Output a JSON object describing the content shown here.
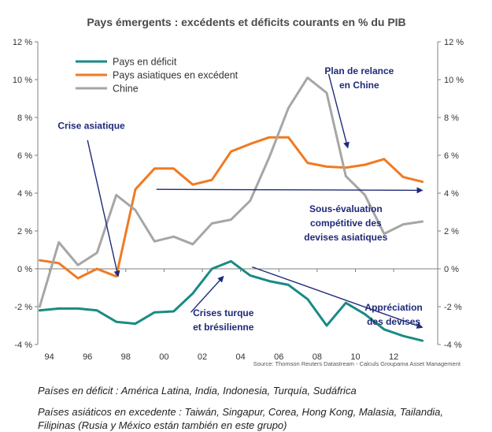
{
  "chart_data": {
    "type": "line",
    "title": "Pays émergents : excédents et déficits courants en % du PIB",
    "x": [
      1993.5,
      1994,
      1995,
      1996,
      1997,
      1998,
      1999,
      2000,
      2001,
      2002,
      2003,
      2004,
      2005,
      2006,
      2007,
      2008,
      2009,
      2010,
      2011,
      2012,
      2013
    ],
    "xlim": [
      1993.4,
      2014.3
    ],
    "ylim": [
      -4,
      12
    ],
    "x_ticks": [
      {
        "value": 1994,
        "label": "94"
      },
      {
        "value": 1996,
        "label": "96"
      },
      {
        "value": 1998,
        "label": "98"
      },
      {
        "value": 2000,
        "label": "00"
      },
      {
        "value": 2002,
        "label": "02"
      },
      {
        "value": 2004,
        "label": "04"
      },
      {
        "value": 2006,
        "label": "06"
      },
      {
        "value": 2008,
        "label": "08"
      },
      {
        "value": 2010,
        "label": "10"
      },
      {
        "value": 2012,
        "label": "12"
      }
    ],
    "y_ticks": [
      {
        "value": 12,
        "label": "12 %"
      },
      {
        "value": 10,
        "label": "10 %"
      },
      {
        "value": 8,
        "label": "8 %"
      },
      {
        "value": 6,
        "label": "6 %"
      },
      {
        "value": 4,
        "label": "4 %"
      },
      {
        "value": 2,
        "label": "2 %"
      },
      {
        "value": 0,
        "label": "0 %"
      },
      {
        "value": -2,
        "label": "-2 %"
      },
      {
        "value": -4,
        "label": "-4 %"
      }
    ],
    "legend_position": "top-left",
    "grid": false,
    "series": [
      {
        "name": "Pays en déficit",
        "color": "#1a8a84",
        "points": [
          [
            1993.5,
            -2.2
          ],
          [
            1994.5,
            -2.1
          ],
          [
            1995.5,
            -2.1
          ],
          [
            1996.5,
            -2.2
          ],
          [
            1997.5,
            -2.8
          ],
          [
            1998.5,
            -2.9
          ],
          [
            1999.5,
            -2.3
          ],
          [
            2000.5,
            -2.25
          ],
          [
            2001.5,
            -1.3
          ],
          [
            2002.5,
            0.0
          ],
          [
            2003.5,
            0.4
          ],
          [
            2004.5,
            -0.35
          ],
          [
            2005.5,
            -0.65
          ],
          [
            2006.5,
            -0.85
          ],
          [
            2007.5,
            -1.6
          ],
          [
            2008.5,
            -3.0
          ],
          [
            2009.5,
            -1.8
          ],
          [
            2010.5,
            -2.4
          ],
          [
            2011.5,
            -3.2
          ],
          [
            2012.5,
            -3.55
          ],
          [
            2013.5,
            -3.8
          ]
        ]
      },
      {
        "name": "Pays asiatiques en excédent",
        "color": "#f07a22",
        "points": [
          [
            1993.5,
            0.45
          ],
          [
            1994.5,
            0.3
          ],
          [
            1995.5,
            -0.5
          ],
          [
            1996.5,
            0.0
          ],
          [
            1997.5,
            -0.4
          ],
          [
            1998.5,
            4.2
          ],
          [
            1999.5,
            5.3
          ],
          [
            2000.5,
            5.3
          ],
          [
            2001.5,
            4.45
          ],
          [
            2002.5,
            4.7
          ],
          [
            2003.5,
            6.2
          ],
          [
            2004.5,
            6.6
          ],
          [
            2005.5,
            6.95
          ],
          [
            2006.5,
            6.95
          ],
          [
            2007.5,
            5.6
          ],
          [
            2008.5,
            5.4
          ],
          [
            2009.5,
            5.35
          ],
          [
            2010.5,
            5.5
          ],
          [
            2011.5,
            5.8
          ],
          [
            2012.5,
            4.85
          ],
          [
            2013.5,
            4.6
          ]
        ]
      },
      {
        "name": "Chine",
        "color": "#a6a6a6",
        "points": [
          [
            1993.5,
            -2.0
          ],
          [
            1994.5,
            1.4
          ],
          [
            1995.5,
            0.2
          ],
          [
            1996.5,
            0.85
          ],
          [
            1997.5,
            3.9
          ],
          [
            1998.5,
            3.1
          ],
          [
            1999.5,
            1.45
          ],
          [
            2000.5,
            1.7
          ],
          [
            2001.5,
            1.3
          ],
          [
            2002.5,
            2.4
          ],
          [
            2003.5,
            2.6
          ],
          [
            2004.5,
            3.6
          ],
          [
            2005.5,
            5.9
          ],
          [
            2006.5,
            8.5
          ],
          [
            2007.5,
            10.1
          ],
          [
            2008.5,
            9.3
          ],
          [
            2009.5,
            4.9
          ],
          [
            2010.5,
            3.9
          ],
          [
            2011.5,
            1.85
          ],
          [
            2012.5,
            2.35
          ],
          [
            2013.5,
            2.5
          ]
        ]
      }
    ],
    "annotations": [
      {
        "text": [
          "Crise asiatique"
        ],
        "anchor": [
          1996.2,
          7.4
        ],
        "align": "middle",
        "arrow": {
          "from": [
            1996.0,
            6.8
          ],
          "to": [
            1997.6,
            -0.4
          ]
        }
      },
      {
        "text": [
          "Plan de relance",
          "en Chine"
        ],
        "anchor": [
          2010.2,
          10.3
        ],
        "align": "middle",
        "arrow": {
          "from": [
            2008.6,
            10.3
          ],
          "to": [
            2009.6,
            6.4
          ]
        }
      },
      {
        "text": [
          "Sous-évaluation",
          "compétitive des",
          "devises asiatiques"
        ],
        "anchor": [
          2009.5,
          3.0
        ],
        "align": "middle",
        "arrow": {
          "from": [
            1999.6,
            4.2
          ],
          "to": [
            2013.5,
            4.15
          ]
        }
      },
      {
        "text": [
          "Crises turque",
          "et brésilienne"
        ],
        "anchor": [
          2003.1,
          -2.5
        ],
        "align": "middle",
        "arrow": {
          "from": [
            2001.4,
            -2.3
          ],
          "to": [
            2003.1,
            -0.4
          ]
        }
      },
      {
        "text": [
          "Appréciation",
          "des devises"
        ],
        "anchor": [
          2012.0,
          -2.2
        ],
        "align": "middle",
        "arrow": {
          "from": [
            2004.6,
            0.1
          ],
          "to": [
            2013.5,
            -3.1
          ]
        }
      }
    ],
    "source": "Source: Thomson Reuters Datastream - Calculs Groupama Asset Management"
  },
  "notes": [
    "Países en déficit : América Latina, India, Indonesia, Turquía, Sudáfrica",
    "Países asiáticos en excedente : Taiwán, Singapur, Corea, Hong Kong, Malasia, Tailandia, Filipinas (Rusia y México están también en este grupo)"
  ]
}
